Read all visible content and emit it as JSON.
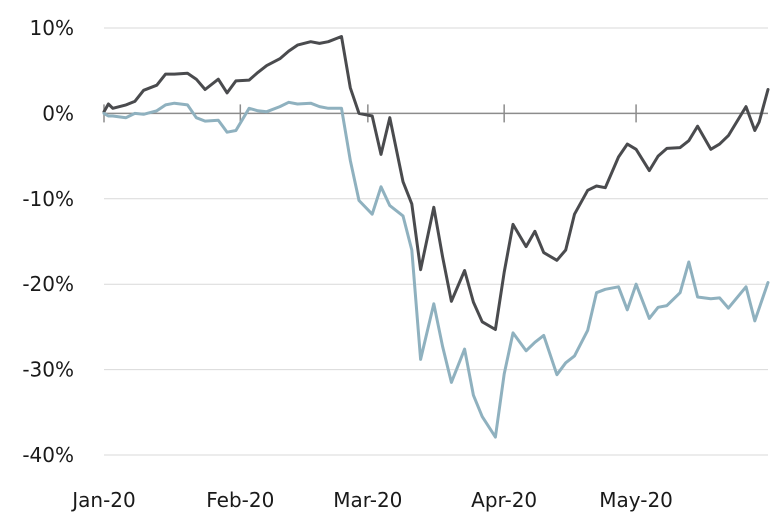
{
  "chart_data": {
    "type": "line",
    "title": "",
    "xlabel": "",
    "ylabel": "",
    "x_ticks": [
      "Jan-20",
      "Feb-20",
      "Mar-20",
      "Apr-20",
      "May-20"
    ],
    "y_ticks": [
      "10%",
      "0%",
      "-10%",
      "-20%",
      "-30%",
      "-40%"
    ],
    "y_tick_values": [
      10,
      0,
      -10,
      -20,
      -30,
      -40
    ],
    "xlim": [
      "2020-01-01",
      "2020-05-31"
    ],
    "ylim": [
      -40,
      10
    ],
    "grid": "horizontal",
    "colors": [
      "#4a4b4e",
      "#8fb1bf"
    ],
    "series": [
      {
        "x": [
          "2020-01-01",
          "2020-01-02",
          "2020-01-03",
          "2020-01-06",
          "2020-01-08",
          "2020-01-10",
          "2020-01-13",
          "2020-01-15",
          "2020-01-17",
          "2020-01-20",
          "2020-01-22",
          "2020-01-24",
          "2020-01-27",
          "2020-01-29",
          "2020-01-31",
          "2020-02-03",
          "2020-02-05",
          "2020-02-07",
          "2020-02-10",
          "2020-02-12",
          "2020-02-14",
          "2020-02-17",
          "2020-02-19",
          "2020-02-21",
          "2020-02-24",
          "2020-02-26",
          "2020-02-28",
          "2020-03-02",
          "2020-03-04",
          "2020-03-06",
          "2020-03-09",
          "2020-03-11",
          "2020-03-13",
          "2020-03-16",
          "2020-03-18",
          "2020-03-20",
          "2020-03-23",
          "2020-03-25",
          "2020-03-27",
          "2020-03-30",
          "2020-04-01",
          "2020-04-03",
          "2020-04-06",
          "2020-04-08",
          "2020-04-10",
          "2020-04-13",
          "2020-04-15",
          "2020-04-17",
          "2020-04-20",
          "2020-04-22",
          "2020-04-24",
          "2020-04-27",
          "2020-04-29",
          "2020-05-01",
          "2020-05-04",
          "2020-05-06",
          "2020-05-08",
          "2020-05-11",
          "2020-05-13",
          "2020-05-15",
          "2020-05-18",
          "2020-05-20",
          "2020-05-22",
          "2020-05-26",
          "2020-05-28",
          "2020-05-29",
          "2020-05-31"
        ],
        "y": [
          0.2,
          1.1,
          0.6,
          1.0,
          1.4,
          2.7,
          3.3,
          4.6,
          4.6,
          4.7,
          4.0,
          2.8,
          4.0,
          2.4,
          3.8,
          3.9,
          4.8,
          5.6,
          6.4,
          7.3,
          8.0,
          8.4,
          8.2,
          8.4,
          9.0,
          3.0,
          0.0,
          -0.3,
          -4.8,
          -0.5,
          -8.0,
          -10.6,
          -18.3,
          -11.0,
          -16.8,
          -22.0,
          -18.4,
          -22.1,
          -24.4,
          -25.3,
          -18.6,
          -13.0,
          -15.6,
          -13.8,
          -16.3,
          -17.2,
          -16.0,
          -11.8,
          -9.0,
          -8.5,
          -8.7,
          -5.1,
          -3.6,
          -4.2,
          -6.7,
          -5.0,
          -4.1,
          -4.0,
          -3.2,
          -1.5,
          -4.2,
          -3.6,
          -2.6,
          0.8,
          -2.0,
          -1.0,
          2.8
        ]
      },
      {
        "x": [
          "2020-01-01",
          "2020-01-02",
          "2020-01-03",
          "2020-01-06",
          "2020-01-08",
          "2020-01-10",
          "2020-01-13",
          "2020-01-15",
          "2020-01-17",
          "2020-01-20",
          "2020-01-22",
          "2020-01-24",
          "2020-01-27",
          "2020-01-29",
          "2020-01-31",
          "2020-02-03",
          "2020-02-05",
          "2020-02-07",
          "2020-02-10",
          "2020-02-12",
          "2020-02-14",
          "2020-02-17",
          "2020-02-19",
          "2020-02-21",
          "2020-02-24",
          "2020-02-26",
          "2020-02-28",
          "2020-03-02",
          "2020-03-04",
          "2020-03-06",
          "2020-03-09",
          "2020-03-11",
          "2020-03-13",
          "2020-03-16",
          "2020-03-18",
          "2020-03-20",
          "2020-03-23",
          "2020-03-25",
          "2020-03-27",
          "2020-03-30",
          "2020-04-01",
          "2020-04-03",
          "2020-04-06",
          "2020-04-08",
          "2020-04-10",
          "2020-04-13",
          "2020-04-15",
          "2020-04-17",
          "2020-04-20",
          "2020-04-22",
          "2020-04-24",
          "2020-04-27",
          "2020-04-29",
          "2020-05-01",
          "2020-05-04",
          "2020-05-06",
          "2020-05-08",
          "2020-05-11",
          "2020-05-13",
          "2020-05-15",
          "2020-05-18",
          "2020-05-20",
          "2020-05-22",
          "2020-05-26",
          "2020-05-28",
          "2020-05-29",
          "2020-05-31"
        ],
        "y": [
          0.0,
          -0.3,
          -0.3,
          -0.5,
          0.0,
          -0.1,
          0.3,
          1.0,
          1.2,
          1.0,
          -0.5,
          -0.9,
          -0.8,
          -2.2,
          -2.0,
          0.6,
          0.3,
          0.2,
          0.8,
          1.3,
          1.1,
          1.2,
          0.8,
          0.6,
          0.6,
          -5.5,
          -10.2,
          -11.8,
          -8.6,
          -10.8,
          -12.0,
          -16.0,
          -28.8,
          -22.3,
          -27.3,
          -31.5,
          -27.6,
          -33.0,
          -35.5,
          -37.9,
          -30.5,
          -25.7,
          -27.8,
          -26.8,
          -26.0,
          -30.6,
          -29.2,
          -28.4,
          -25.4,
          -21.0,
          -20.6,
          -20.3,
          -23.0,
          -20.0,
          -24.0,
          -22.7,
          -22.5,
          -21.0,
          -17.4,
          -21.5,
          -21.7,
          -21.6,
          -22.8,
          -20.3,
          -24.3,
          -22.8,
          -19.8
        ]
      }
    ]
  }
}
